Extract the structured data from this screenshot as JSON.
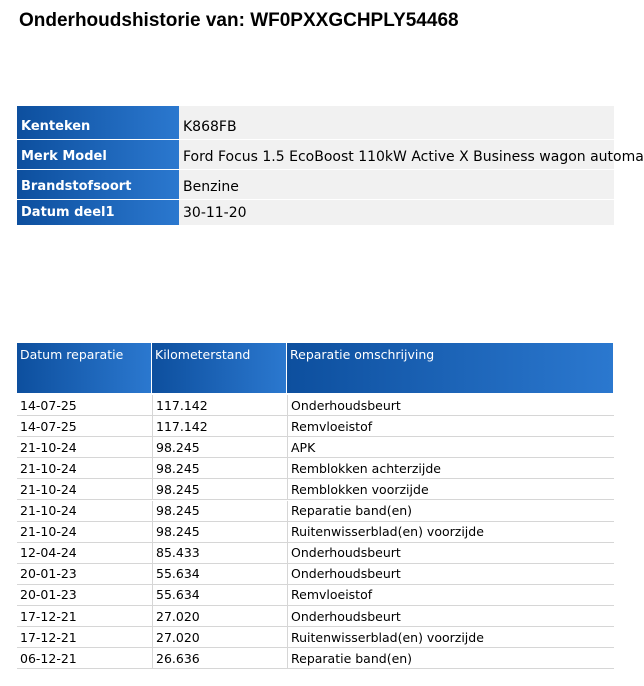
{
  "header": {
    "title": "Onderhoudshistorie van: WF0PXXGCHPLY54468"
  },
  "vehicle": {
    "rows": [
      [
        "Kenteken",
        "K868FB"
      ],
      [
        "Merk Model",
        "Ford Focus 1.5 EcoBoost 110kW Active X Business wagon automa"
      ],
      [
        "Brandstofsoort",
        "Benzine"
      ],
      [
        "Datum deel1",
        "30-11-20"
      ]
    ]
  },
  "repairs": {
    "columns": [
      "Datum reparatie",
      "Kilometerstand",
      "Reparatie omschrijving"
    ],
    "rows": [
      [
        "14-07-25",
        "117.142",
        "Onderhoudsbeurt"
      ],
      [
        "14-07-25",
        "117.142",
        "Remvloeistof"
      ],
      [
        "21-10-24",
        "98.245",
        "APK"
      ],
      [
        "21-10-24",
        "98.245",
        "Remblokken achterzijde"
      ],
      [
        "21-10-24",
        "98.245",
        "Remblokken voorzijde"
      ],
      [
        "21-10-24",
        "98.245",
        "Reparatie band(en)"
      ],
      [
        "21-10-24",
        "98.245",
        "Ruitenwisserblad(en) voorzijde"
      ],
      [
        "12-04-24",
        "85.433",
        "Onderhoudsbeurt"
      ],
      [
        "20-01-23",
        "55.634",
        "Onderhoudsbeurt"
      ],
      [
        "20-01-23",
        "55.634",
        "Remvloeistof"
      ],
      [
        "17-12-21",
        "27.020",
        "Onderhoudsbeurt"
      ],
      [
        "17-12-21",
        "27.020",
        "Ruitenwisserblad(en) voorzijde"
      ],
      [
        "06-12-21",
        "26.636",
        "Reparatie band(en)"
      ]
    ]
  }
}
